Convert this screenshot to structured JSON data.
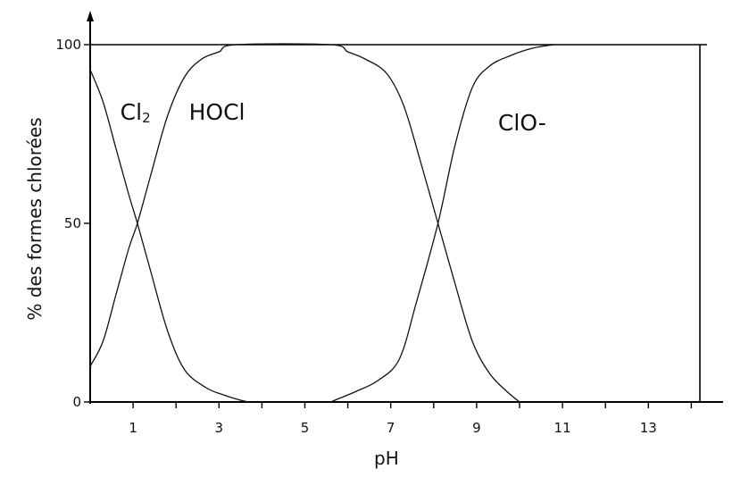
{
  "chart_data": {
    "type": "line",
    "title": "",
    "xlabel": "pH",
    "ylabel": "% des formes chlorées",
    "xlim": [
      0,
      14.2
    ],
    "ylim": [
      0,
      100
    ],
    "xticks": [
      1,
      3,
      5,
      7,
      9,
      11,
      13
    ],
    "xtick_labels": [
      "1",
      "3",
      "5",
      "7",
      "9",
      "11",
      "13"
    ],
    "yticks": [
      0,
      50,
      100
    ],
    "ytick_labels": [
      "0",
      "50",
      "100"
    ],
    "grid": false,
    "legend": "none",
    "series": [
      {
        "name": "Cl₂",
        "x": [
          0,
          0.3,
          0.6,
          0.9,
          1.1,
          1.4,
          1.8,
          2.2,
          2.7,
          3.1,
          3.5,
          3.7
        ],
        "y": [
          93,
          84,
          71,
          58,
          50,
          37,
          20,
          9,
          4,
          2,
          0.5,
          0
        ]
      },
      {
        "name": "HOCl",
        "x": [
          0,
          0.3,
          0.6,
          0.9,
          1.1,
          1.4,
          1.8,
          2.2,
          2.6,
          3.0,
          3.4,
          5.6,
          6.0,
          6.4,
          6.9,
          7.3,
          7.7,
          8.1,
          8.5,
          8.9,
          9.3,
          9.7,
          10.0
        ],
        "y": [
          10,
          17,
          30,
          43,
          50,
          63,
          80,
          91,
          96,
          98,
          100,
          100,
          98,
          96,
          92,
          83,
          67,
          50,
          33,
          17,
          8,
          3,
          0
        ]
      },
      {
        "name": "ClO-",
        "x": [
          5.6,
          5.8,
          6.2,
          6.7,
          7.2,
          7.6,
          8.1,
          8.5,
          8.9,
          9.3,
          9.8,
          10.3,
          10.8
        ],
        "y": [
          0,
          1,
          3,
          6,
          12,
          28,
          50,
          72,
          88,
          94,
          97,
          99,
          100
        ]
      }
    ],
    "labels": [
      {
        "text": "Cl",
        "sub": "2",
        "at": [
          0.7,
          79
        ]
      },
      {
        "text": "HOCl",
        "at": [
          2.3,
          79
        ]
      },
      {
        "text": "ClO-",
        "at": [
          9.5,
          76
        ]
      }
    ]
  }
}
